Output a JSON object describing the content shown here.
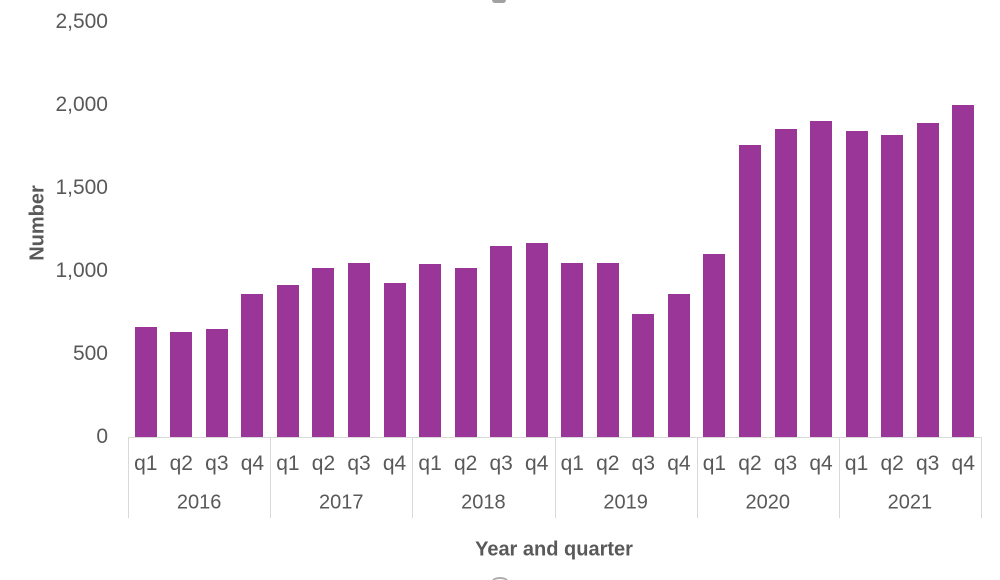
{
  "chart_data": {
    "type": "bar",
    "title": "",
    "ylabel": "Number",
    "xlabel": "Year and quarter",
    "ylim": [
      0,
      2500
    ],
    "grid": false,
    "legend": null,
    "bar_color_hex": "#9A3697",
    "axis_line_color_hex": "#D9D9D9",
    "text_color_hex": "#595959",
    "y_ticks": [
      {
        "value": 2500,
        "label": "2,500"
      },
      {
        "value": 2000,
        "label": "2,000"
      },
      {
        "value": 1500,
        "label": "1,500"
      },
      {
        "value": 1000,
        "label": "1,000"
      },
      {
        "value": 500,
        "label": "500"
      },
      {
        "value": 0,
        "label": "0"
      }
    ],
    "quarter_labels": [
      "q1",
      "q2",
      "q3",
      "q4"
    ],
    "groups": [
      {
        "year": "2016",
        "quarters": [
          "q1",
          "q2",
          "q3",
          "q4"
        ],
        "values": [
          665,
          630,
          650,
          860
        ]
      },
      {
        "year": "2017",
        "quarters": [
          "q1",
          "q2",
          "q3",
          "q4"
        ],
        "values": [
          915,
          1015,
          1050,
          925
        ]
      },
      {
        "year": "2018",
        "quarters": [
          "q1",
          "q2",
          "q3",
          "q4"
        ],
        "values": [
          1040,
          1020,
          1150,
          1170
        ]
      },
      {
        "year": "2019",
        "quarters": [
          "q1",
          "q2",
          "q3",
          "q4"
        ],
        "values": [
          1045,
          1045,
          740,
          860
        ]
      },
      {
        "year": "2020",
        "quarters": [
          "q1",
          "q2",
          "q3",
          "q4"
        ],
        "values": [
          1100,
          1755,
          1855,
          1900
        ]
      },
      {
        "year": "2021",
        "quarters": [
          "q1",
          "q2",
          "q3",
          "q4"
        ],
        "values": [
          1840,
          1820,
          1890,
          2000
        ]
      }
    ]
  }
}
